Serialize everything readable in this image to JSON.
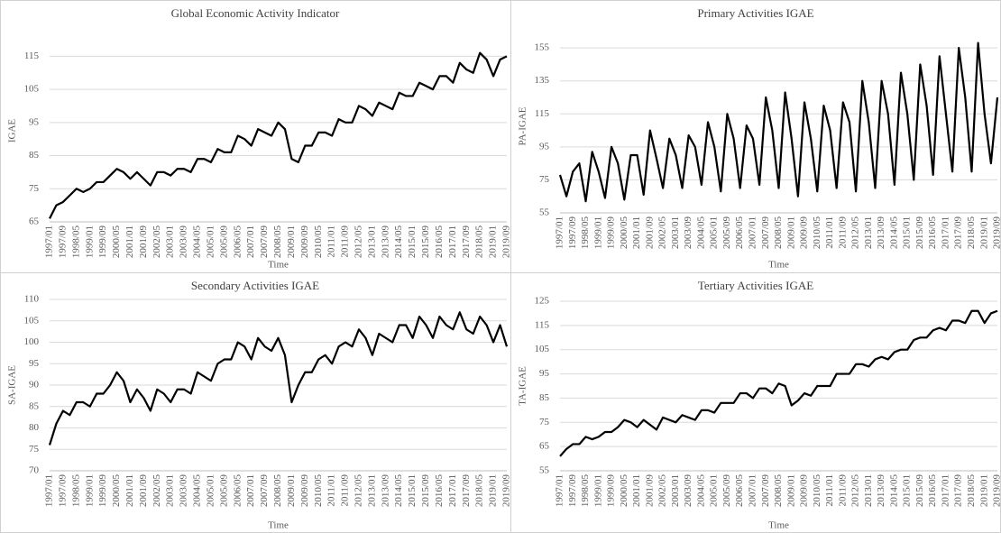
{
  "chart_data": [
    {
      "type": "line",
      "title": "Global Economic Activity Indicator",
      "y_label": "IGAE",
      "x_label": "Time",
      "color": "#000000",
      "grid": true,
      "ylim": [
        65,
        120
      ],
      "yticks": [
        65,
        75,
        85,
        95,
        105,
        115
      ],
      "categories": [
        "1997/01",
        null,
        "1997/09",
        null,
        "1998/05",
        null,
        "1999/01",
        null,
        "1999/09",
        null,
        "2000/05",
        null,
        "2001/01",
        null,
        "2001/09",
        null,
        "2002/05",
        null,
        "2003/01",
        null,
        "2003/09",
        null,
        "2004/05",
        null,
        "2005/01",
        null,
        "2005/09",
        null,
        "2006/05",
        null,
        "2007/01",
        null,
        "2007/09",
        null,
        "2008/05",
        null,
        "2009/01",
        null,
        "2009/09",
        null,
        "2010/05",
        null,
        "2011/01",
        null,
        "2011/09",
        null,
        "2012/05",
        null,
        "2013/01",
        null,
        "2013/09",
        null,
        "2014/05",
        null,
        "2015/01",
        null,
        "2015/09",
        null,
        "2016/05",
        null,
        "2017/01",
        null,
        "2017/09",
        null,
        "2018/05",
        null,
        "2019/01",
        null,
        "2019/09"
      ],
      "values": [
        66,
        70,
        71,
        73,
        75,
        74,
        75,
        77,
        77,
        79,
        81,
        80,
        78,
        80,
        78,
        76,
        80,
        80,
        79,
        81,
        81,
        80,
        84,
        84,
        83,
        87,
        86,
        86,
        91,
        90,
        88,
        93,
        92,
        91,
        95,
        93,
        84,
        83,
        88,
        88,
        92,
        92,
        91,
        96,
        95,
        95,
        100,
        99,
        97,
        101,
        100,
        99,
        104,
        103,
        103,
        107,
        106,
        105,
        109,
        109,
        107,
        113,
        111,
        110,
        116,
        114,
        109,
        114,
        115
      ]
    },
    {
      "type": "line",
      "title": "Primary Activities IGAE",
      "y_label": "PA-IGAE",
      "x_label": "Time",
      "color": "#000000",
      "grid": true,
      "ylim": [
        55,
        160
      ],
      "yticks": [
        55,
        75,
        95,
        115,
        135,
        155
      ],
      "categories": [
        "1997/01",
        null,
        "1997/09",
        null,
        "1998/05",
        null,
        "1999/01",
        null,
        "1999/09",
        null,
        "2000/05",
        null,
        "2001/01",
        null,
        "2001/09",
        null,
        "2002/05",
        null,
        "2003/01",
        null,
        "2003/09",
        null,
        "2004/05",
        null,
        "2005/01",
        null,
        "2005/09",
        null,
        "2006/05",
        null,
        "2007/01",
        null,
        "2007/09",
        null,
        "2008/05",
        null,
        "2009/01",
        null,
        "2009/09",
        null,
        "2010/05",
        null,
        "2011/01",
        null,
        "2011/09",
        null,
        "2012/05",
        null,
        "2013/01",
        null,
        "2013/09",
        null,
        "2014/05",
        null,
        "2015/01",
        null,
        "2015/09",
        null,
        "2016/05",
        null,
        "2017/01",
        null,
        "2017/09",
        null,
        "2018/05",
        null,
        "2019/01",
        null,
        "2019/09"
      ],
      "values": [
        78,
        65,
        80,
        85,
        62,
        92,
        80,
        64,
        95,
        85,
        63,
        90,
        90,
        66,
        105,
        88,
        70,
        100,
        90,
        70,
        102,
        95,
        72,
        110,
        95,
        68,
        115,
        100,
        70,
        108,
        100,
        72,
        125,
        105,
        70,
        128,
        100,
        65,
        122,
        100,
        68,
        120,
        105,
        70,
        122,
        110,
        68,
        135,
        110,
        70,
        135,
        115,
        72,
        140,
        115,
        75,
        145,
        120,
        78,
        150,
        115,
        80,
        155,
        125,
        80,
        158,
        115,
        85,
        125
      ]
    },
    {
      "type": "line",
      "title": "Secondary Activities IGAE",
      "y_label": "SA-IGAE",
      "x_label": "Time",
      "color": "#000000",
      "grid": true,
      "ylim": [
        70,
        110
      ],
      "yticks": [
        70,
        75,
        80,
        85,
        90,
        95,
        100,
        105,
        110
      ],
      "categories": [
        "1997/01",
        null,
        "1997/09",
        null,
        "1998/05",
        null,
        "1999/01",
        null,
        "1999/09",
        null,
        "2000/05",
        null,
        "2001/01",
        null,
        "2001/09",
        null,
        "2002/05",
        null,
        "2003/01",
        null,
        "2003/09",
        null,
        "2004/05",
        null,
        "2005/01",
        null,
        "2005/09",
        null,
        "2006/05",
        null,
        "2007/01",
        null,
        "2007/09",
        null,
        "2008/05",
        null,
        "2009/01",
        null,
        "2009/09",
        null,
        "2010/05",
        null,
        "2011/01",
        null,
        "2011/09",
        null,
        "2012/05",
        null,
        "2013/01",
        null,
        "2013/09",
        null,
        "2014/05",
        null,
        "2015/01",
        null,
        "2015/09",
        null,
        "2016/05",
        null,
        "2017/01",
        null,
        "2017/09",
        null,
        "2018/05",
        null,
        "2019/01",
        null,
        "2019/09"
      ],
      "values": [
        76,
        81,
        84,
        83,
        86,
        86,
        85,
        88,
        88,
        90,
        93,
        91,
        86,
        89,
        87,
        84,
        89,
        88,
        86,
        89,
        89,
        88,
        93,
        92,
        91,
        95,
        96,
        96,
        100,
        99,
        96,
        101,
        99,
        98,
        101,
        97,
        86,
        90,
        93,
        93,
        96,
        97,
        95,
        99,
        100,
        99,
        103,
        101,
        97,
        102,
        101,
        100,
        104,
        104,
        101,
        106,
        104,
        101,
        106,
        104,
        103,
        107,
        103,
        102,
        106,
        104,
        100,
        104,
        99
      ]
    },
    {
      "type": "line",
      "title": "Tertiary Activities IGAE",
      "y_label": "TA-IGAE",
      "x_label": "Time",
      "color": "#000000",
      "grid": true,
      "ylim": [
        55,
        125
      ],
      "yticks": [
        55,
        65,
        75,
        85,
        95,
        105,
        115,
        125
      ],
      "categories": [
        "1997/01",
        null,
        "1997/09",
        null,
        "1998/05",
        null,
        "1999/01",
        null,
        "1999/09",
        null,
        "2000/05",
        null,
        "2001/01",
        null,
        "2001/09",
        null,
        "2002/05",
        null,
        "2003/01",
        null,
        "2003/09",
        null,
        "2004/05",
        null,
        "2005/01",
        null,
        "2005/09",
        null,
        "2006/05",
        null,
        "2007/01",
        null,
        "2007/09",
        null,
        "2008/05",
        null,
        "2009/01",
        null,
        "2009/09",
        null,
        "2010/05",
        null,
        "2011/01",
        null,
        "2011/09",
        null,
        "2012/05",
        null,
        "2013/01",
        null,
        "2013/09",
        null,
        "2014/05",
        null,
        "2015/01",
        null,
        "2015/09",
        null,
        "2016/05",
        null,
        "2017/01",
        null,
        "2017/09",
        null,
        "2018/05",
        null,
        "2019/01",
        null,
        "2019/09"
      ],
      "values": [
        61,
        64,
        66,
        66,
        69,
        68,
        69,
        71,
        71,
        73,
        76,
        75,
        73,
        76,
        74,
        72,
        77,
        76,
        75,
        78,
        77,
        76,
        80,
        80,
        79,
        83,
        83,
        83,
        87,
        87,
        85,
        89,
        89,
        87,
        91,
        90,
        82,
        84,
        87,
        86,
        90,
        90,
        90,
        95,
        95,
        95,
        99,
        99,
        98,
        101,
        102,
        101,
        104,
        105,
        105,
        109,
        110,
        110,
        113,
        114,
        113,
        117,
        117,
        116,
        121,
        121,
        116,
        120,
        121
      ]
    }
  ]
}
